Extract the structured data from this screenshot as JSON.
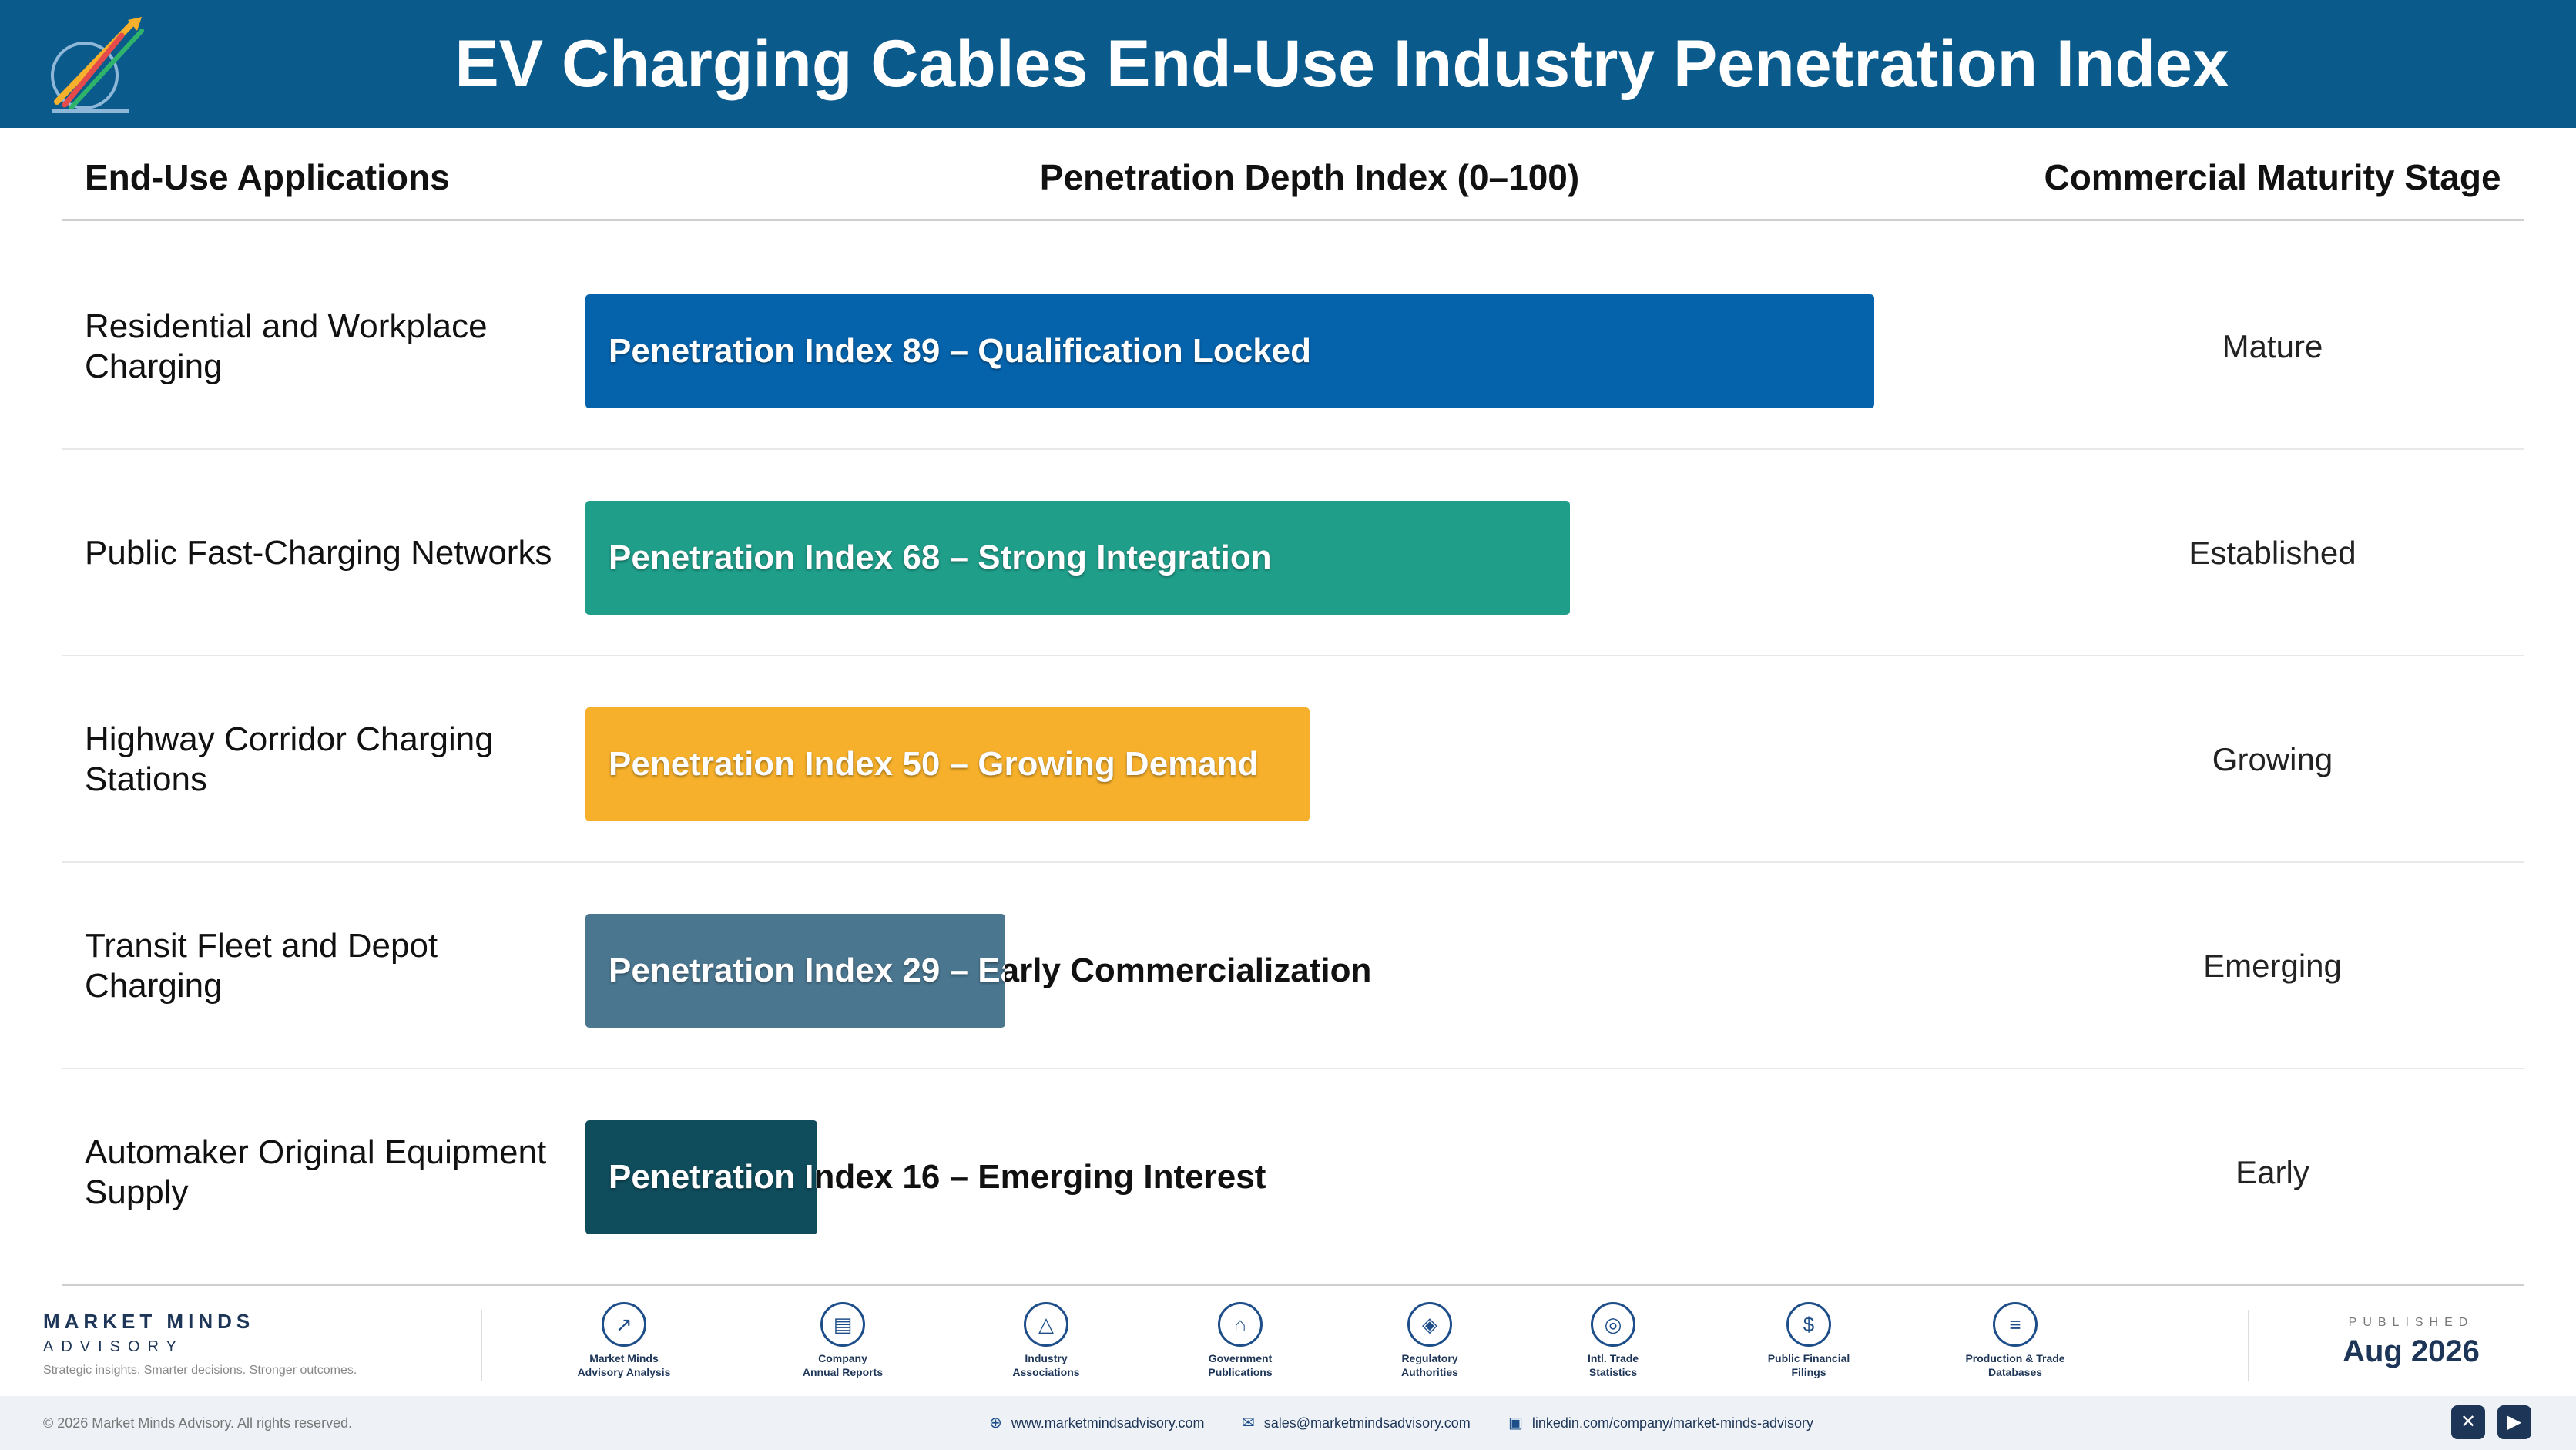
{
  "header": {
    "title": "EV Charging Cables End-Use Industry Penetration Index"
  },
  "columns": {
    "applications": "End-Use Applications",
    "index": "Penetration Depth Index (0–100)",
    "stage": "Commercial Maturity Stage"
  },
  "chart_data": {
    "type": "bar",
    "orientation": "horizontal",
    "title": "EV Charging Cables End-Use Industry Penetration Index",
    "xlabel": "Penetration Depth Index (0–100)",
    "xlim": [
      0,
      100
    ],
    "categories": [
      "Residential and Workplace Charging",
      "Public Fast-Charging Networks",
      "Highway Corridor Charging Stations",
      "Transit Fleet and Depot Charging",
      "Automaker Original Equipment Supply"
    ],
    "values": [
      89,
      68,
      50,
      29,
      16
    ],
    "bar_labels": [
      "Penetration Index 89 – Qualification Locked",
      "Penetration Index 68 – Strong Integration",
      "Penetration Index 50 – Growing Demand",
      "Penetration Index 29 – Early Commercialization",
      "Penetration Index 16 – Emerging Interest"
    ],
    "stages": [
      "Mature",
      "Established",
      "Growing",
      "Emerging",
      "Early"
    ],
    "colors": [
      "#0563ac",
      "#1f9e8a",
      "#f6b02b",
      "#4a7690",
      "#0f4c5c"
    ],
    "grid": false,
    "legend": "none"
  },
  "footer": {
    "brand_name": "MARKET MINDS",
    "brand_sub": "ADVISORY",
    "brand_tag": "Strategic insights. Smarter decisions. Stronger outcomes.",
    "sources": [
      {
        "icon": "trend-chart-icon",
        "glyph": "↗",
        "line1": "Market Minds",
        "line2": "Advisory Analysis"
      },
      {
        "icon": "document-icon",
        "glyph": "▤",
        "line1": "Company",
        "line2": "Annual Reports"
      },
      {
        "icon": "network-icon",
        "glyph": "△",
        "line1": "Industry",
        "line2": "Associations"
      },
      {
        "icon": "government-building-icon",
        "glyph": "⌂",
        "line1": "Government",
        "line2": "Publications"
      },
      {
        "icon": "shield-icon",
        "glyph": "◈",
        "line1": "Regulatory",
        "line2": "Authorities"
      },
      {
        "icon": "globe-icon",
        "glyph": "◎",
        "line1": "Intl. Trade",
        "line2": "Statistics"
      },
      {
        "icon": "dollar-coin-icon",
        "glyph": "$",
        "line1": "Public Financial",
        "line2": "Filings"
      },
      {
        "icon": "database-icon",
        "glyph": "≡",
        "line1": "Production & Trade",
        "line2": "Databases"
      }
    ],
    "published_label": "PUBLISHED",
    "published_date": "Aug 2026",
    "copyright": "© 2026 Market Minds Advisory. All rights reserved.",
    "website": "www.marketmindsadvisory.com",
    "email": "sales@marketmindsadvisory.com",
    "linkedin": "linkedin.com/company/market-minds-advisory"
  }
}
